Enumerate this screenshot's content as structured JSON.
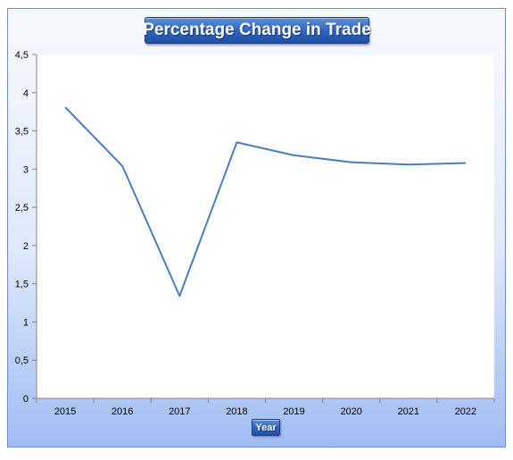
{
  "chart_data": {
    "type": "line",
    "title": "Percentage Change in Trade",
    "xlabel": "Year",
    "ylabel": "",
    "categories": [
      "2015",
      "2016",
      "2017",
      "2018",
      "2019",
      "2020",
      "2021",
      "2022"
    ],
    "series": [
      {
        "values": [
          3.81,
          3.04,
          1.34,
          3.35,
          3.18,
          3.09,
          3.06,
          3.08
        ]
      }
    ],
    "ylim": [
      0,
      4.5
    ],
    "yticks": [
      "0",
      "0,5",
      "1",
      "1,5",
      "2",
      "2,5",
      "3",
      "3,5",
      "4",
      "4,5"
    ],
    "ytick_values": [
      0,
      0.5,
      1,
      1.5,
      2,
      2.5,
      3,
      3.5,
      4,
      4.5
    ],
    "grid": false,
    "legend": "none",
    "colors": {
      "line": "#4a7ebb",
      "plot_bg": "#ffffff",
      "title_box": "#2f66c1",
      "frame_gradient_bottom": "#9fbcf3"
    }
  }
}
